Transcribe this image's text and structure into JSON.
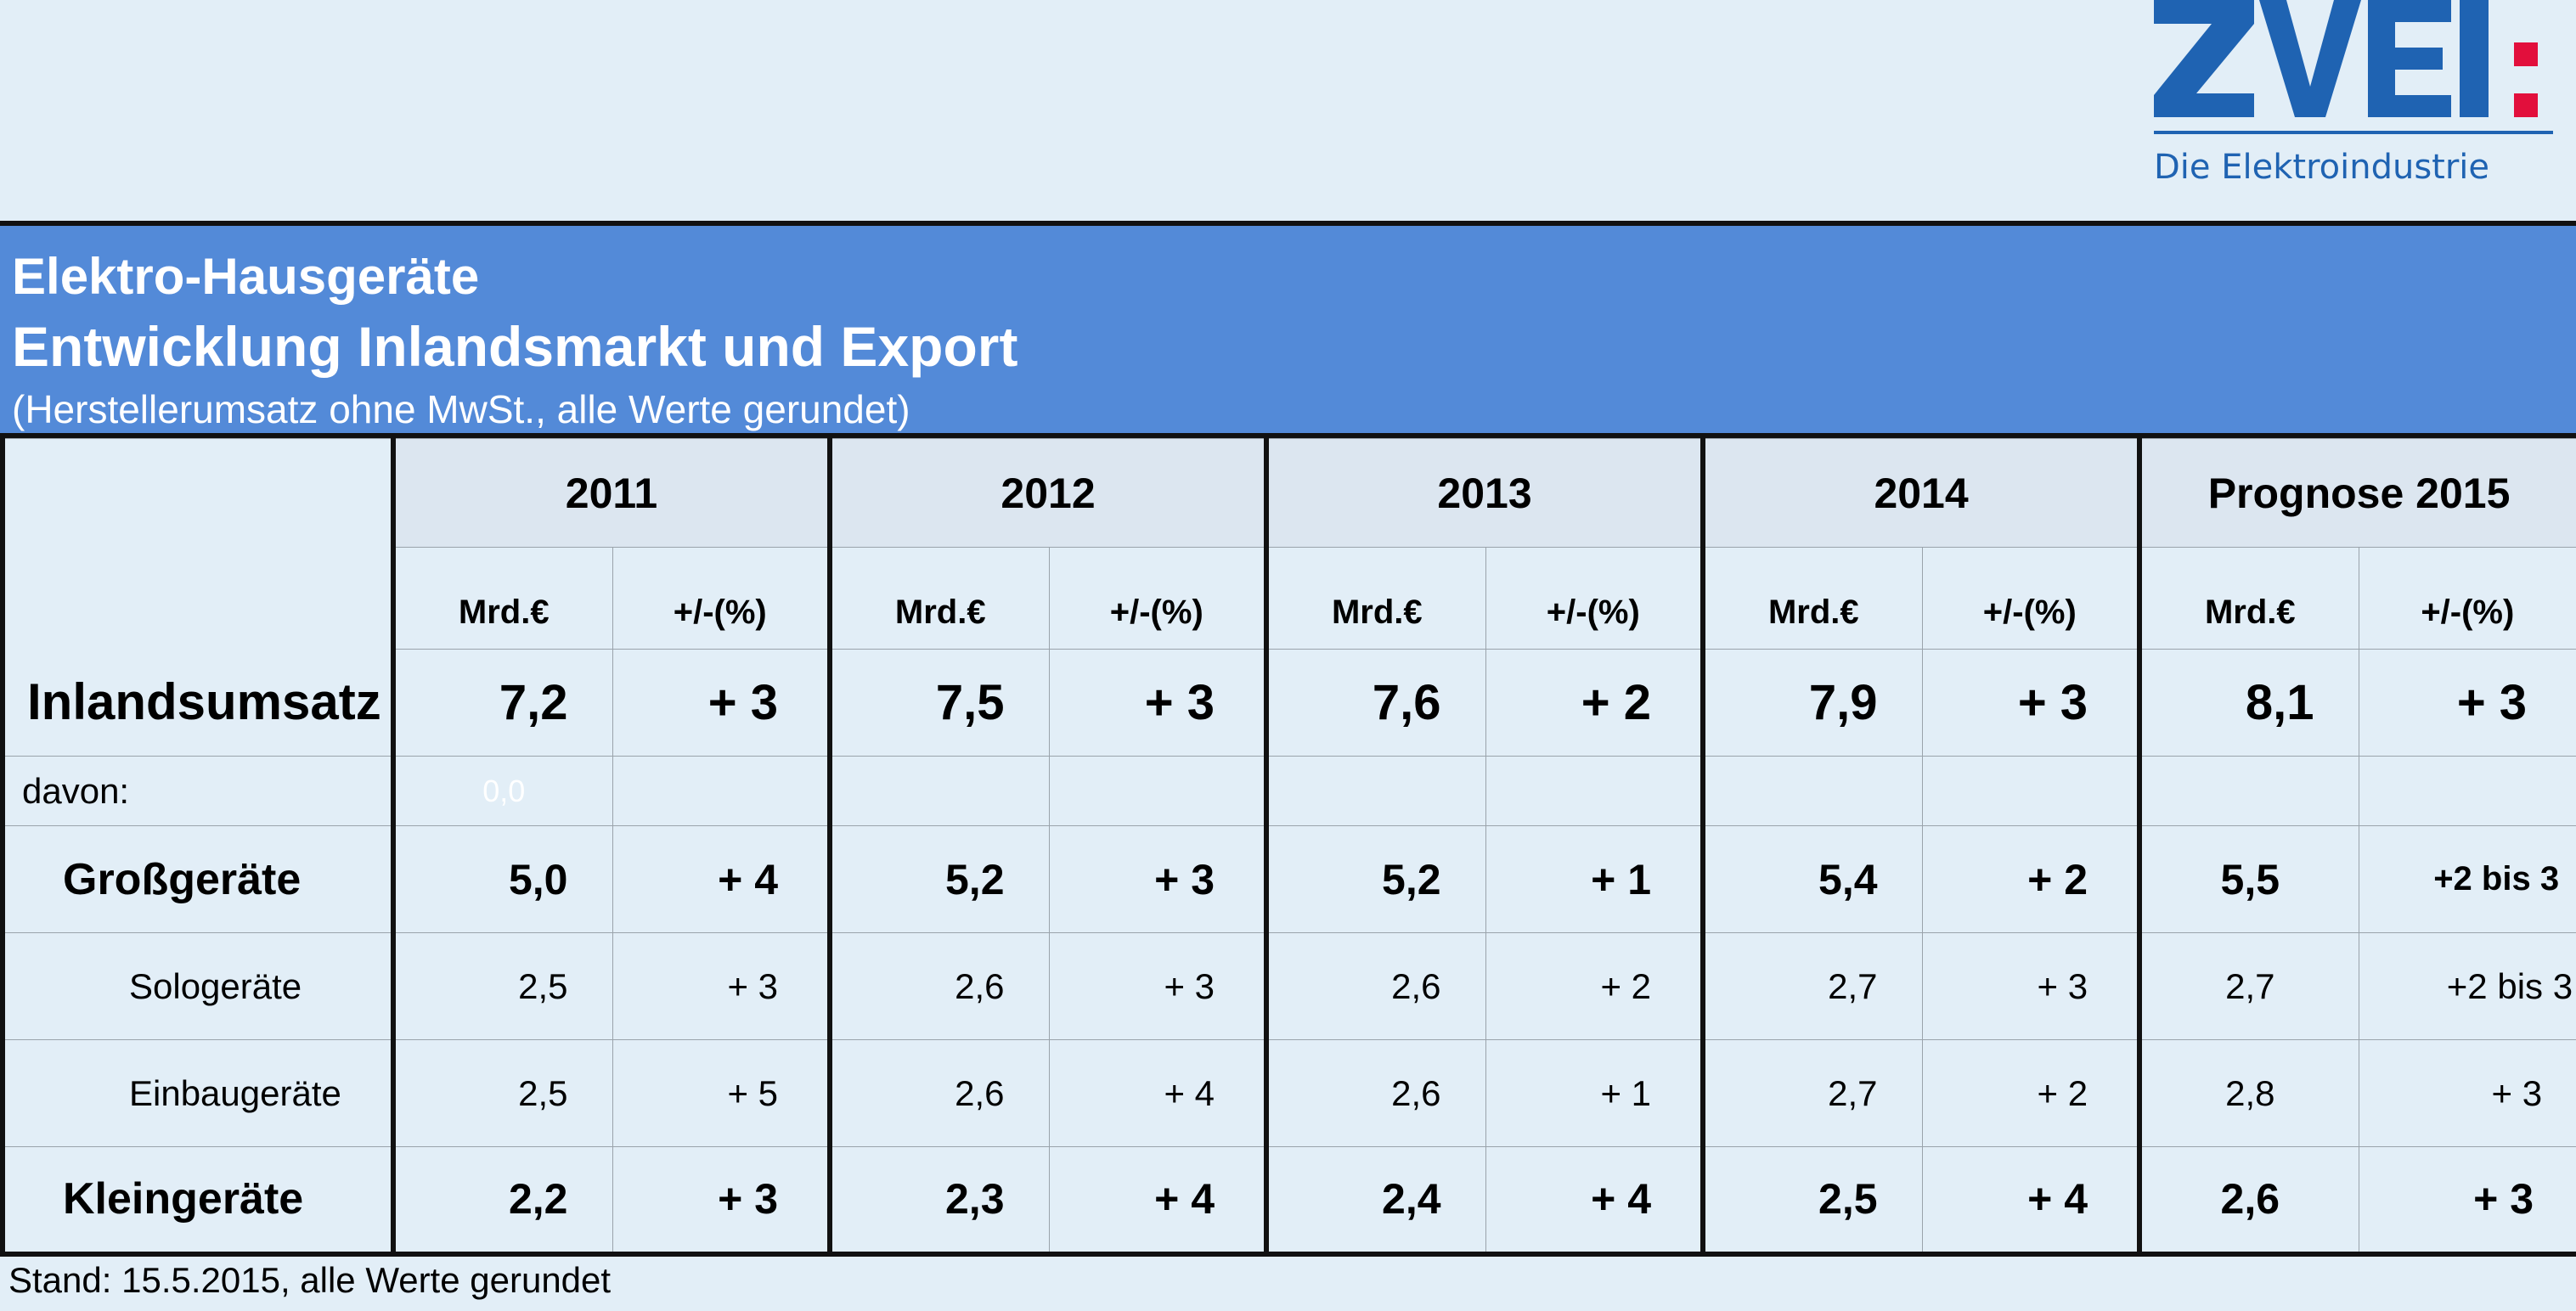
{
  "logo": {
    "brand": "ZVEI",
    "tagline": "Die Elektroindustrie",
    "brand_color": "#1f63b2",
    "dot_color": "#e20f3c"
  },
  "header": {
    "title": "Elektro-Hausgeräte",
    "subtitle": "Entwicklung Inlandsmarkt und Export",
    "note": "(Herstellerumsatz ohne MwSt., alle Werte gerundet)",
    "bg_color": "#538ad8"
  },
  "years": [
    "2011",
    "2012",
    "2013",
    "2014",
    "Prognose 2015"
  ],
  "units": {
    "value": "Mrd.€",
    "change": "+/-(%)"
  },
  "rows": {
    "inland": {
      "label": "Inlandsumsatz",
      "values": [
        "7,2",
        "+ 3",
        "7,5",
        "+ 3",
        "7,6",
        "+ 2",
        "7,9",
        "+ 3",
        "8,1",
        "+ 3"
      ]
    },
    "davon": {
      "label": "davon:",
      "hidden": "0,0"
    },
    "gross": {
      "label": "Großgeräte",
      "values": [
        "5,0",
        "+ 4",
        "5,2",
        "+ 3",
        "5,2",
        "+ 1",
        "5,4",
        "+ 2",
        "5,5",
        "+2 bis 3"
      ]
    },
    "solo": {
      "label": "Sologeräte",
      "values": [
        "2,5",
        "+ 3",
        "2,6",
        "+ 3",
        "2,6",
        "+ 2",
        "2,7",
        "+ 3",
        "2,7",
        "+2 bis 3"
      ]
    },
    "einbau": {
      "label": "Einbaugeräte",
      "values": [
        "2,5",
        "+ 5",
        "2,6",
        "+ 4",
        "2,6",
        "+ 1",
        "2,7",
        "+ 2",
        "2,8",
        "+ 3"
      ]
    },
    "klein": {
      "label": "Kleingeräte",
      "values": [
        "2,2",
        "+ 3",
        "2,3",
        "+ 4",
        "2,4",
        "+ 4",
        "2,5",
        "+ 4",
        "2,6",
        "+ 3"
      ]
    }
  },
  "footer": "Stand: 15.5.2015, alle Werte gerundet"
}
